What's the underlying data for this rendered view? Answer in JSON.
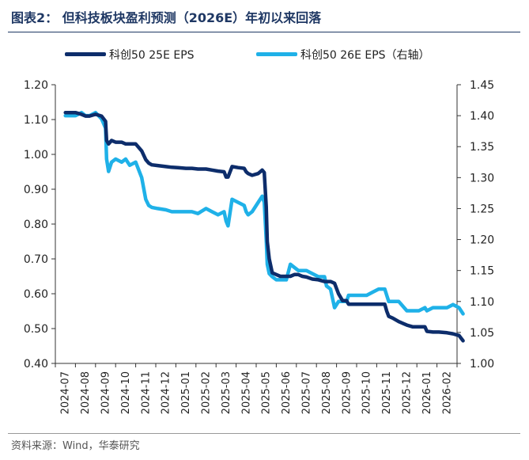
{
  "title": "图表2：  但科技板块盈利预测（2026E）年初以来回落",
  "source": "资料来源：Wind，华泰研究",
  "colors": {
    "series1": "#0d2d6b",
    "series2": "#1fb1e8",
    "title": "#1f3864"
  },
  "chart_data": {
    "type": "line",
    "title": "图表2：  但科技板块盈利预测（2026E）年初以来回落",
    "legend_position": "top",
    "grid": false,
    "x_labels": [
      "2024-07",
      "2024-08",
      "2024-09",
      "2024-10",
      "2024-11",
      "2024-12",
      "2025-01",
      "2025-02",
      "2025-03",
      "2025-04",
      "2025-05",
      "2025-06",
      "2025-07",
      "2025-08",
      "2025-09",
      "2025-10",
      "2025-11",
      "2025-12",
      "2026-01",
      "2026-02"
    ],
    "y_left": {
      "ylim": [
        0.4,
        1.2
      ],
      "ticks": [
        "0.40",
        "0.50",
        "0.60",
        "0.70",
        "0.80",
        "0.90",
        "1.00",
        "1.10",
        "1.20"
      ]
    },
    "y_right": {
      "ylim": [
        1.0,
        1.45
      ],
      "ticks": [
        "1.00",
        "1.05",
        "1.10",
        "1.15",
        "1.20",
        "1.25",
        "1.30",
        "1.35",
        "1.40",
        "1.45"
      ]
    },
    "series": [
      {
        "name": "科创50 25E EPS",
        "axis": "left",
        "x": [
          0,
          0.2,
          0.5,
          0.8,
          1,
          1.2,
          1.5,
          1.8,
          2,
          2.05,
          2.15,
          2.3,
          2.5,
          2.8,
          3,
          3.2,
          3.5,
          3.8,
          4,
          4.15,
          4.3,
          4.6,
          5,
          5.3,
          5.6,
          6,
          6.3,
          6.6,
          7,
          7.3,
          7.6,
          7.9,
          8,
          8.1,
          8.3,
          8.6,
          8.9,
          9,
          9.1,
          9.3,
          9.6,
          9.8,
          9.9,
          10,
          10.05,
          10.15,
          10.3,
          10.5,
          10.7,
          11,
          11.2,
          11.4,
          11.6,
          11.8,
          12,
          12.3,
          12.6,
          12.9,
          13,
          13.2,
          13.4,
          13.6,
          13.8,
          14,
          14.1,
          14.3,
          14.6,
          15,
          15.3,
          15.6,
          15.9,
          16,
          16.1,
          16.3,
          16.6,
          17,
          17.3,
          17.6,
          17.9,
          18,
          18.3,
          18.6,
          19,
          19.3,
          19.6,
          19.8
        ],
        "y": [
          1.12,
          1.12,
          1.12,
          1.115,
          1.11,
          1.11,
          1.115,
          1.11,
          1.095,
          1.04,
          1.03,
          1.04,
          1.035,
          1.035,
          1.03,
          1.03,
          1.03,
          1.01,
          0.985,
          0.975,
          0.97,
          0.968,
          0.965,
          0.963,
          0.962,
          0.96,
          0.96,
          0.958,
          0.958,
          0.955,
          0.952,
          0.95,
          0.935,
          0.935,
          0.965,
          0.962,
          0.96,
          0.95,
          0.945,
          0.94,
          0.945,
          0.955,
          0.948,
          0.85,
          0.75,
          0.7,
          0.66,
          0.655,
          0.65,
          0.65,
          0.65,
          0.655,
          0.655,
          0.65,
          0.648,
          0.642,
          0.64,
          0.635,
          0.635,
          0.635,
          0.63,
          0.6,
          0.58,
          0.58,
          0.57,
          0.57,
          0.57,
          0.57,
          0.57,
          0.57,
          0.57,
          0.55,
          0.535,
          0.53,
          0.52,
          0.51,
          0.505,
          0.505,
          0.505,
          0.492,
          0.49,
          0.49,
          0.488,
          0.485,
          0.48,
          0.465
        ]
      },
      {
        "name": "科创50 26E EPS（右轴）",
        "axis": "right",
        "x": [
          0,
          0.2,
          0.5,
          0.8,
          1,
          1.2,
          1.5,
          1.8,
          2,
          2.05,
          2.15,
          2.3,
          2.5,
          2.8,
          3,
          3.2,
          3.5,
          3.8,
          4,
          4.15,
          4.3,
          4.6,
          5,
          5.3,
          5.6,
          6,
          6.3,
          6.6,
          7,
          7.3,
          7.6,
          7.9,
          8,
          8.1,
          8.3,
          8.6,
          8.9,
          9,
          9.1,
          9.3,
          9.6,
          9.8,
          9.9,
          10,
          10.05,
          10.15,
          10.3,
          10.5,
          10.7,
          11,
          11.2,
          11.4,
          11.6,
          11.8,
          12,
          12.3,
          12.6,
          12.9,
          13,
          13.2,
          13.4,
          13.6,
          13.8,
          14,
          14.1,
          14.3,
          14.6,
          15,
          15.3,
          15.6,
          15.9,
          16,
          16.1,
          16.3,
          16.6,
          17,
          17.3,
          17.6,
          17.9,
          18,
          18.3,
          18.6,
          19,
          19.3,
          19.6,
          19.8
        ],
        "y": [
          1.4,
          1.4,
          1.4,
          1.405,
          1.4,
          1.4,
          1.405,
          1.395,
          1.38,
          1.33,
          1.31,
          1.325,
          1.33,
          1.325,
          1.33,
          1.32,
          1.325,
          1.3,
          1.265,
          1.255,
          1.252,
          1.25,
          1.248,
          1.245,
          1.245,
          1.245,
          1.245,
          1.242,
          1.25,
          1.245,
          1.24,
          1.245,
          1.23,
          1.222,
          1.265,
          1.26,
          1.255,
          1.245,
          1.24,
          1.245,
          1.26,
          1.27,
          1.26,
          1.2,
          1.16,
          1.145,
          1.14,
          1.135,
          1.135,
          1.135,
          1.16,
          1.155,
          1.15,
          1.15,
          1.15,
          1.145,
          1.14,
          1.14,
          1.125,
          1.12,
          1.09,
          1.1,
          1.1,
          1.1,
          1.11,
          1.11,
          1.11,
          1.11,
          1.115,
          1.12,
          1.12,
          1.11,
          1.1,
          1.1,
          1.1,
          1.085,
          1.085,
          1.085,
          1.09,
          1.085,
          1.09,
          1.09,
          1.09,
          1.095,
          1.09,
          1.08
        ]
      }
    ]
  }
}
